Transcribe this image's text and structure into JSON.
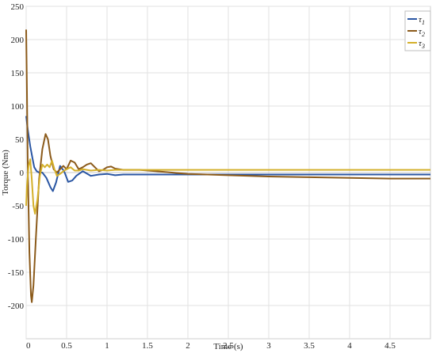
{
  "chart_data": {
    "type": "line",
    "title": "",
    "xlabel": "Time (s)",
    "ylabel": "Torque (Nm)",
    "xlim": [
      0,
      5
    ],
    "ylim": [
      -250,
      250
    ],
    "xticks": [
      0,
      0.5,
      1,
      1.5,
      2,
      2.5,
      3,
      3.5,
      4,
      4.5
    ],
    "xtick_labels": [
      "0",
      "0.5",
      "1",
      "1.5",
      "2",
      "2.5",
      "3",
      "3.5",
      "4",
      "4.5"
    ],
    "yticks": [
      -200,
      -150,
      -100,
      -50,
      0,
      50,
      100,
      150,
      200,
      250
    ],
    "ytick_labels": [
      "-200",
      "-150",
      "-100",
      "-50",
      "0",
      "50",
      "100",
      "150",
      "200",
      "250"
    ],
    "grid": true,
    "legend_position": "top-right",
    "series": [
      {
        "name": "τ1",
        "symbol": "τ",
        "subscript": "1",
        "color": "#2a56a3",
        "x": [
          0,
          0.02,
          0.05,
          0.08,
          0.1,
          0.13,
          0.16,
          0.2,
          0.25,
          0.3,
          0.33,
          0.37,
          0.42,
          0.47,
          0.52,
          0.57,
          0.62,
          0.7,
          0.8,
          0.9,
          1.0,
          1.1,
          1.2,
          1.4,
          1.6,
          2.0,
          2.5,
          3.0,
          3.5,
          4.0,
          4.5,
          5.0
        ],
        "y": [
          85,
          65,
          40,
          20,
          8,
          2,
          0,
          0,
          -8,
          -22,
          -28,
          -15,
          10,
          2,
          -14,
          -12,
          -5,
          2,
          -5,
          -3,
          -2,
          -4,
          -3,
          -3,
          -3,
          -3,
          -3,
          -3,
          -3,
          -3,
          -3,
          -3
        ]
      },
      {
        "name": "τ2",
        "symbol": "τ",
        "subscript": "2",
        "color": "#8b5a1a",
        "x": [
          0,
          0.01,
          0.02,
          0.04,
          0.06,
          0.07,
          0.09,
          0.12,
          0.16,
          0.2,
          0.24,
          0.27,
          0.3,
          0.34,
          0.38,
          0.42,
          0.46,
          0.5,
          0.55,
          0.6,
          0.65,
          0.7,
          0.75,
          0.8,
          0.85,
          0.9,
          0.95,
          1.0,
          1.05,
          1.1,
          1.2,
          1.4,
          1.6,
          1.8,
          2.0,
          2.5,
          3.0,
          3.5,
          4.0,
          4.5,
          5.0
        ],
        "y": [
          215,
          120,
          10,
          -120,
          -185,
          -195,
          -170,
          -100,
          -10,
          35,
          58,
          50,
          25,
          5,
          0,
          5,
          10,
          5,
          18,
          15,
          5,
          8,
          12,
          14,
          8,
          2,
          4,
          8,
          9,
          6,
          4,
          4,
          2,
          0,
          -2,
          -4,
          -6,
          -7,
          -8,
          -9,
          -9
        ]
      },
      {
        "name": "τ3",
        "symbol": "τ",
        "subscript": "3",
        "color": "#d4b02a",
        "x": [
          0,
          0.01,
          0.03,
          0.05,
          0.07,
          0.09,
          0.11,
          0.14,
          0.17,
          0.2,
          0.23,
          0.26,
          0.29,
          0.32,
          0.35,
          0.38,
          0.42,
          0.46,
          0.5,
          0.55,
          0.6,
          0.65,
          0.7,
          0.75,
          0.8,
          0.9,
          1.0,
          1.1,
          1.2,
          1.4,
          2.0,
          2.5,
          3.0,
          3.5,
          4.0,
          4.5,
          5.0
        ],
        "y": [
          -50,
          -20,
          10,
          20,
          -10,
          -50,
          -62,
          -40,
          -5,
          12,
          8,
          12,
          8,
          18,
          5,
          -5,
          -2,
          2,
          5,
          8,
          3,
          3,
          5,
          4,
          3,
          4,
          3,
          4,
          4,
          4,
          4,
          4,
          4,
          4,
          4,
          4,
          4
        ]
      }
    ]
  }
}
